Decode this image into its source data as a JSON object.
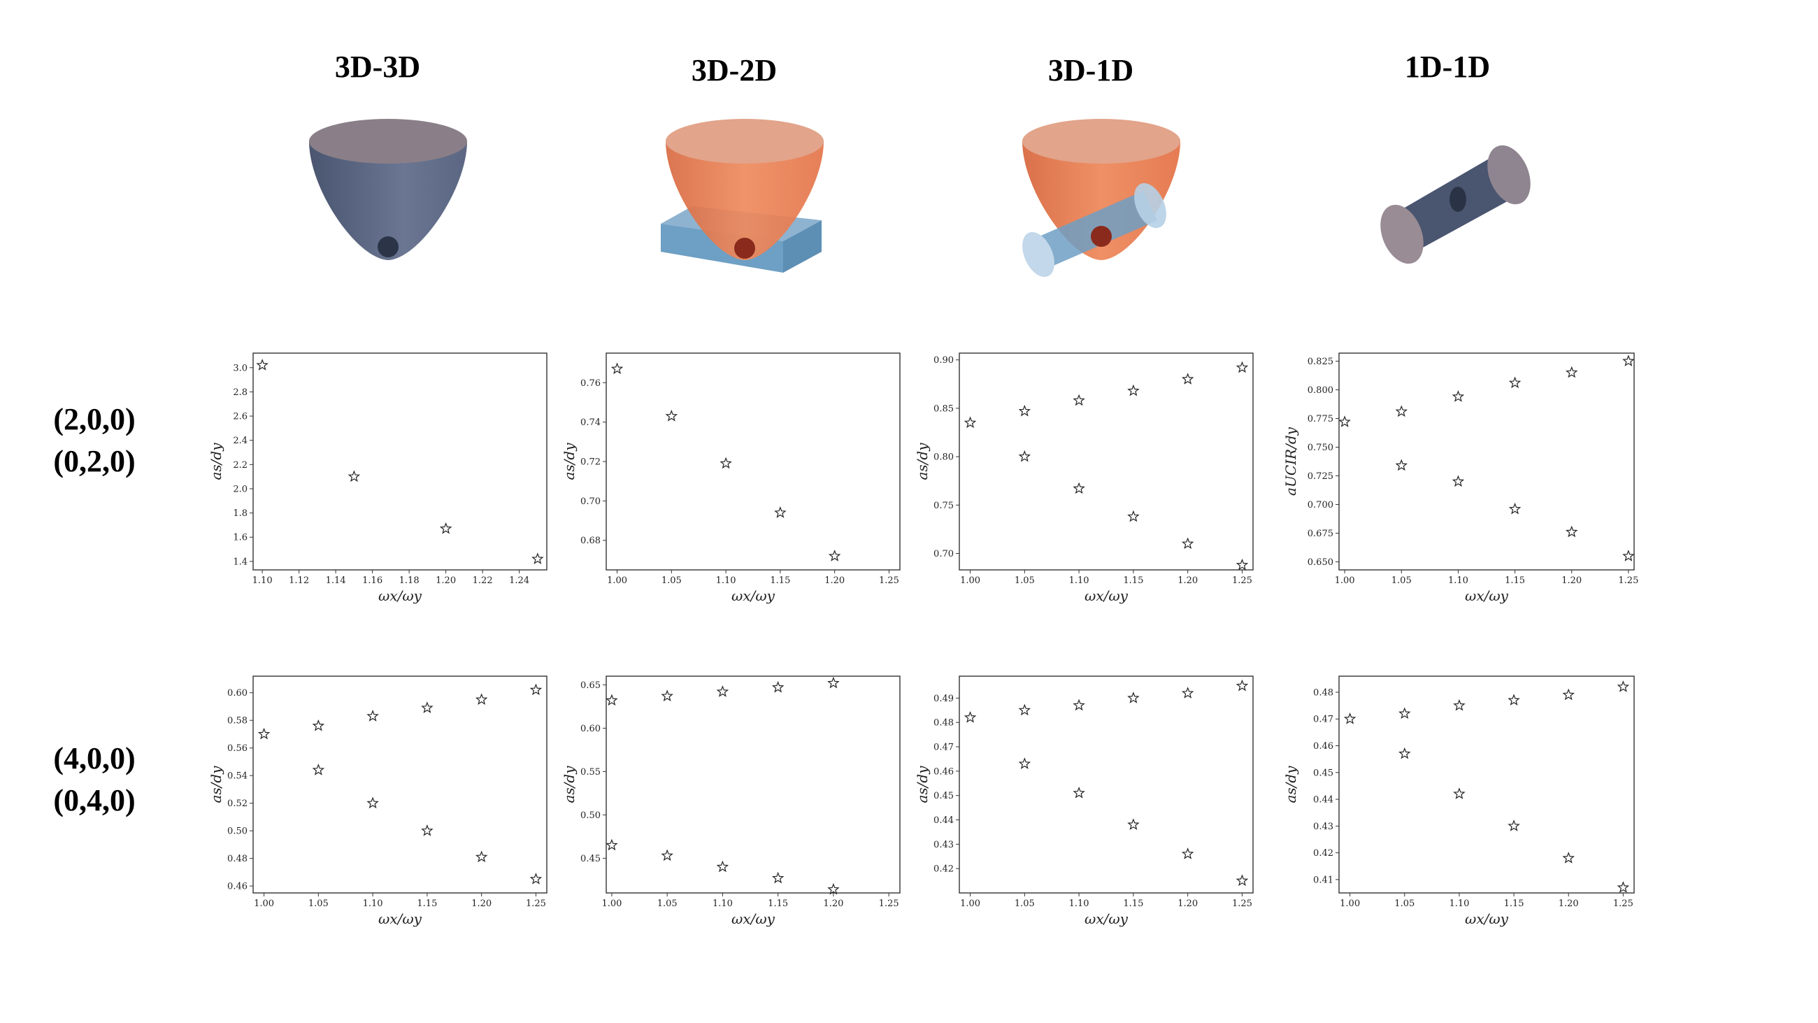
{
  "columns": [
    {
      "title": "3D-3D"
    },
    {
      "title": "3D-2D"
    },
    {
      "title": "3D-1D"
    },
    {
      "title": "1D-1D"
    }
  ],
  "rows": [
    {
      "label_line1": "(2,0,0)",
      "label_line2": "(0,2,0)"
    },
    {
      "label_line1": "(4,0,0)",
      "label_line2": "(0,4,0)"
    }
  ],
  "colors": {
    "trap_dark": "#5b6782",
    "trap_orange": "#e8764a",
    "lattice_blue": "#6e9fc4",
    "atom": "#2c3448"
  },
  "chart_data": [
    {
      "type": "scatter",
      "marker": "star",
      "xlabel": "ωx/ωy",
      "ylabel": "as/dy",
      "xlim": [
        1.095,
        1.255
      ],
      "ylim": [
        1.33,
        3.12
      ],
      "xticks": [
        "1.10",
        "1.12",
        "1.14",
        "1.16",
        "1.18",
        "1.20",
        "1.22",
        "1.24"
      ],
      "yticks": [
        "1.4",
        "1.6",
        "1.8",
        "2.0",
        "2.2",
        "2.4",
        "2.6",
        "2.8",
        "3.0"
      ],
      "series": [
        {
          "points": [
            [
              1.1,
              3.02
            ],
            [
              1.15,
              2.1
            ],
            [
              1.2,
              1.67
            ],
            [
              1.25,
              1.42
            ]
          ]
        }
      ]
    },
    {
      "type": "scatter",
      "marker": "star",
      "xlabel": "ωx/ωy",
      "ylabel": "as/dy",
      "xlim": [
        0.99,
        1.26
      ],
      "ylim": [
        0.665,
        0.775
      ],
      "xticks": [
        "1.00",
        "1.05",
        "1.10",
        "1.15",
        "1.20",
        "1.25"
      ],
      "yticks": [
        "0.68",
        "0.70",
        "0.72",
        "0.74",
        "0.76"
      ],
      "series": [
        {
          "points": [
            [
              1.0,
              0.767
            ],
            [
              1.05,
              0.743
            ],
            [
              1.1,
              0.719
            ],
            [
              1.15,
              0.694
            ],
            [
              1.2,
              0.672
            ]
          ]
        }
      ]
    },
    {
      "type": "scatter",
      "marker": "star",
      "xlabel": "ωx/ωy",
      "ylabel": "as/dy",
      "xlim": [
        0.99,
        1.26
      ],
      "ylim": [
        0.683,
        0.907
      ],
      "xticks": [
        "1.00",
        "1.05",
        "1.10",
        "1.15",
        "1.20",
        "1.25"
      ],
      "yticks": [
        "0.70",
        "0.75",
        "0.80",
        "0.85",
        "0.90"
      ],
      "series": [
        {
          "points": [
            [
              1.0,
              0.835
            ],
            [
              1.05,
              0.847
            ],
            [
              1.1,
              0.858
            ],
            [
              1.15,
              0.868
            ],
            [
              1.2,
              0.88
            ],
            [
              1.25,
              0.892
            ]
          ]
        },
        {
          "points": [
            [
              1.05,
              0.8
            ],
            [
              1.1,
              0.767
            ],
            [
              1.15,
              0.738
            ],
            [
              1.2,
              0.71
            ],
            [
              1.25,
              0.688
            ]
          ]
        }
      ]
    },
    {
      "type": "scatter",
      "marker": "star",
      "xlabel": "ωx/ωy",
      "ylabel": "aUCIR/dy",
      "xlim": [
        0.995,
        1.255
      ],
      "ylim": [
        0.643,
        0.832
      ],
      "xticks": [
        "1.00",
        "1.05",
        "1.10",
        "1.15",
        "1.20",
        "1.25"
      ],
      "yticks": [
        "0.650",
        "0.675",
        "0.700",
        "0.725",
        "0.750",
        "0.775",
        "0.800",
        "0.825"
      ],
      "series": [
        {
          "points": [
            [
              1.0,
              0.772
            ],
            [
              1.05,
              0.781
            ],
            [
              1.1,
              0.794
            ],
            [
              1.15,
              0.806
            ],
            [
              1.2,
              0.815
            ],
            [
              1.25,
              0.825
            ]
          ]
        },
        {
          "points": [
            [
              1.05,
              0.734
            ],
            [
              1.1,
              0.72
            ],
            [
              1.15,
              0.696
            ],
            [
              1.2,
              0.676
            ],
            [
              1.25,
              0.655
            ]
          ]
        }
      ]
    },
    {
      "type": "scatter",
      "marker": "star",
      "xlabel": "ωx/ωy",
      "ylabel": "as/dy",
      "xlim": [
        0.99,
        1.26
      ],
      "ylim": [
        0.455,
        0.612
      ],
      "xticks": [
        "1.00",
        "1.05",
        "1.10",
        "1.15",
        "1.20",
        "1.25"
      ],
      "yticks": [
        "0.46",
        "0.48",
        "0.50",
        "0.52",
        "0.54",
        "0.56",
        "0.58",
        "0.60"
      ],
      "series": [
        {
          "points": [
            [
              1.0,
              0.57
            ],
            [
              1.05,
              0.576
            ],
            [
              1.1,
              0.583
            ],
            [
              1.15,
              0.589
            ],
            [
              1.2,
              0.595
            ],
            [
              1.25,
              0.602
            ]
          ]
        },
        {
          "points": [
            [
              1.05,
              0.544
            ],
            [
              1.1,
              0.52
            ],
            [
              1.15,
              0.5
            ],
            [
              1.2,
              0.481
            ],
            [
              1.25,
              0.465
            ]
          ]
        }
      ]
    },
    {
      "type": "scatter",
      "marker": "star",
      "xlabel": "ωx/ωy",
      "ylabel": "as/dy",
      "xlim": [
        0.995,
        1.26
      ],
      "ylim": [
        0.41,
        0.66
      ],
      "xticks": [
        "1.00",
        "1.05",
        "1.10",
        "1.15",
        "1.20",
        "1.25"
      ],
      "yticks": [
        "0.45",
        "0.50",
        "0.55",
        "0.60",
        "0.65"
      ],
      "series": [
        {
          "points": [
            [
              1.0,
              0.632
            ],
            [
              1.05,
              0.637
            ],
            [
              1.1,
              0.642
            ],
            [
              1.15,
              0.647
            ],
            [
              1.2,
              0.652
            ]
          ]
        },
        {
          "points": [
            [
              1.0,
              0.465
            ],
            [
              1.05,
              0.453
            ],
            [
              1.1,
              0.44
            ],
            [
              1.15,
              0.427
            ],
            [
              1.2,
              0.414
            ]
          ]
        }
      ]
    },
    {
      "type": "scatter",
      "marker": "star",
      "xlabel": "ωx/ωy",
      "ylabel": "as/dy",
      "xlim": [
        0.99,
        1.26
      ],
      "ylim": [
        0.41,
        0.499
      ],
      "xticks": [
        "1.00",
        "1.05",
        "1.10",
        "1.15",
        "1.20",
        "1.25"
      ],
      "yticks": [
        "0.42",
        "0.43",
        "0.44",
        "0.45",
        "0.46",
        "0.47",
        "0.48",
        "0.49"
      ],
      "series": [
        {
          "points": [
            [
              1.0,
              0.482
            ],
            [
              1.05,
              0.485
            ],
            [
              1.1,
              0.487
            ],
            [
              1.15,
              0.49
            ],
            [
              1.2,
              0.492
            ],
            [
              1.25,
              0.495
            ]
          ]
        },
        {
          "points": [
            [
              1.05,
              0.463
            ],
            [
              1.1,
              0.451
            ],
            [
              1.15,
              0.438
            ],
            [
              1.2,
              0.426
            ],
            [
              1.25,
              0.415
            ]
          ]
        }
      ]
    },
    {
      "type": "scatter",
      "marker": "star",
      "xlabel": "ωx/ωy",
      "ylabel": "as/dy",
      "xlim": [
        0.99,
        1.26
      ],
      "ylim": [
        0.405,
        0.486
      ],
      "xticks": [
        "1.00",
        "1.05",
        "1.10",
        "1.15",
        "1.20",
        "1.25"
      ],
      "yticks": [
        "0.41",
        "0.42",
        "0.43",
        "0.44",
        "0.45",
        "0.46",
        "0.47",
        "0.48"
      ],
      "series": [
        {
          "points": [
            [
              1.0,
              0.47
            ],
            [
              1.05,
              0.472
            ],
            [
              1.1,
              0.475
            ],
            [
              1.15,
              0.477
            ],
            [
              1.2,
              0.479
            ],
            [
              1.25,
              0.482
            ]
          ]
        },
        {
          "points": [
            [
              1.05,
              0.457
            ],
            [
              1.1,
              0.442
            ],
            [
              1.15,
              0.43
            ],
            [
              1.2,
              0.418
            ],
            [
              1.25,
              0.407
            ]
          ]
        }
      ]
    }
  ]
}
